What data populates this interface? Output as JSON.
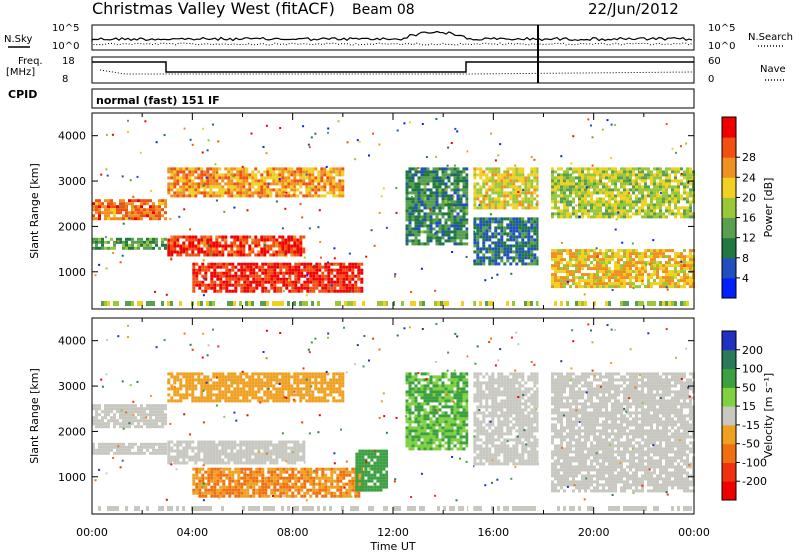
{
  "header": {
    "title": "Christmas Valley West (fitACF)",
    "beam": "Beam 08",
    "date": "22/Jun/2012"
  },
  "top_panels": {
    "nsky_label": "N.Sky",
    "nsearch_label": "N.Search",
    "freq_label_1": "Freq.",
    "freq_label_2": "[MHz]",
    "nave_label": "Nave",
    "cpid_label": "CPID",
    "cpid_value": "normal (fast) 151 IF",
    "noise_left_ticks": [
      "10^5",
      "10^0"
    ],
    "noise_right_ticks": [
      "10^5",
      "10^0"
    ],
    "freq_ticks": [
      "18",
      "8"
    ],
    "nave_ticks": [
      "60",
      "0"
    ]
  },
  "chart_data": [
    {
      "type": "heatmap",
      "name": "power",
      "ylabel": "Slant Range [km]",
      "xlabel": "Time UT",
      "xlim": [
        0,
        24
      ],
      "ylim": [
        180,
        4500
      ],
      "yticks": [
        "1000",
        "2000",
        "3000",
        "4000"
      ],
      "xticks": [
        "00:00",
        "04:00",
        "08:00",
        "12:00",
        "16:00",
        "20:00",
        "00:00"
      ],
      "colorbar": {
        "label": "Power [dB]",
        "ticks": [
          "4",
          "8",
          "12",
          "16",
          "20",
          "24",
          "28"
        ],
        "colors": [
          "#0020ff",
          "#2050c0",
          "#207840",
          "#58a050",
          "#98c838",
          "#f0d020",
          "#f09020",
          "#f05010",
          "#f00000"
        ]
      },
      "bands": [
        {
          "t0": 0.0,
          "t1": 2.9,
          "r0": 2200,
          "r1": 2600,
          "p": 24
        },
        {
          "t0": 0.0,
          "t1": 2.9,
          "r0": 1550,
          "r1": 1750,
          "p": 12
        },
        {
          "t0": 3.0,
          "t1": 8.5,
          "r0": 1350,
          "r1": 1800,
          "p": 27
        },
        {
          "t0": 4.0,
          "t1": 10.8,
          "r0": 550,
          "r1": 1200,
          "p": 28
        },
        {
          "t0": 3.0,
          "t1": 10.0,
          "r0": 2700,
          "r1": 3300,
          "p": 22
        },
        {
          "t0": 12.5,
          "t1": 15.0,
          "r0": 1600,
          "r1": 3300,
          "p": 10
        },
        {
          "t0": 15.2,
          "t1": 17.8,
          "r0": 2400,
          "r1": 3300,
          "p": 18
        },
        {
          "t0": 15.2,
          "t1": 17.8,
          "r0": 1200,
          "r1": 2200,
          "p": 8
        },
        {
          "t0": 18.3,
          "t1": 24.0,
          "r0": 700,
          "r1": 1500,
          "p": 20
        },
        {
          "t0": 18.3,
          "t1": 24.0,
          "r0": 2200,
          "r1": 3300,
          "p": 16
        }
      ]
    },
    {
      "type": "heatmap",
      "name": "velocity",
      "ylabel": "Slant Range [km]",
      "xlabel": "Time UT",
      "xlim": [
        0,
        24
      ],
      "ylim": [
        180,
        4500
      ],
      "yticks": [
        "1000",
        "2000",
        "3000",
        "4000"
      ],
      "xticks": [
        "00:00",
        "04:00",
        "08:00",
        "12:00",
        "16:00",
        "20:00",
        "00:00"
      ],
      "colorbar": {
        "label": "Velocity [m s⁻¹]",
        "ticks": [
          "200",
          "100",
          "50",
          "15",
          "-15",
          "-50",
          "-100",
          "-200"
        ],
        "colors": [
          "#2030c0",
          "#2a7a5a",
          "#3aa040",
          "#80d040",
          "#c8c8c0",
          "#f0a020",
          "#f07010",
          "#f03010",
          "#f00000"
        ]
      },
      "bands": [
        {
          "t0": 0.0,
          "t1": 2.9,
          "r0": 2100,
          "r1": 2600,
          "v": 0
        },
        {
          "t0": 0.0,
          "t1": 2.9,
          "r0": 1550,
          "r1": 1750,
          "v": 0
        },
        {
          "t0": 3.0,
          "t1": 8.5,
          "r0": 1300,
          "r1": 1800,
          "v": 0
        },
        {
          "t0": 4.0,
          "t1": 10.8,
          "r0": 550,
          "r1": 1200,
          "v": -50
        },
        {
          "t0": 10.5,
          "t1": 11.8,
          "r0": 700,
          "r1": 1600,
          "v": 50
        },
        {
          "t0": 3.0,
          "t1": 10.0,
          "r0": 2700,
          "r1": 3300,
          "v": -30
        },
        {
          "t0": 12.5,
          "t1": 15.0,
          "r0": 1600,
          "r1": 3300,
          "v": 30
        },
        {
          "t0": 15.2,
          "t1": 17.8,
          "r0": 1300,
          "r1": 3300,
          "v": 0
        },
        {
          "t0": 18.3,
          "t1": 24.0,
          "r0": 700,
          "r1": 3300,
          "v": 0
        }
      ]
    }
  ]
}
